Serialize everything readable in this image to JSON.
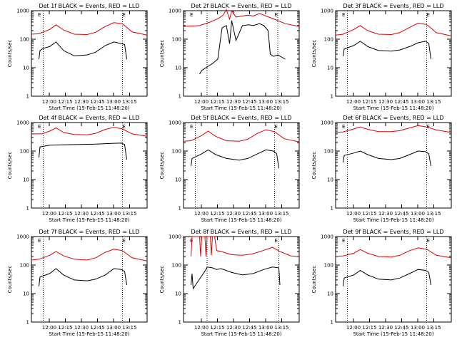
{
  "chart_data": [
    {
      "type": "line",
      "title": "Det 1f BLACK = Events, RED = LLD",
      "xlabel": "Start Time (15-Feb-15 11:48:20)",
      "ylabel": "Counts/sec",
      "yscale": "log",
      "ylim": [
        1,
        1000
      ],
      "xlim_minutes": [
        -5,
        103
      ],
      "x_tick_labels": [
        "12:00",
        "12:15",
        "12:30",
        "12:45",
        "13:00",
        "13:15"
      ],
      "x_tick_minutes": [
        11.67,
        26.67,
        41.67,
        56.67,
        71.67,
        86.67
      ],
      "y_tick_labels": [
        "1",
        "10",
        "100",
        "1000"
      ],
      "y_tick_values": [
        1,
        10,
        100,
        1000
      ],
      "vertical_lines_minutes": [
        6,
        80
      ],
      "markers": [
        {
          "label": "E",
          "x_minute": 1
        },
        {
          "label": "E",
          "x_minute": 80
        }
      ],
      "series": [
        {
          "color": "#e00000",
          "x": [
            -5,
            2,
            12,
            18,
            25,
            35,
            47,
            55,
            64,
            72,
            80,
            89,
            103
          ],
          "y": [
            150,
            155,
            220,
            320,
            210,
            150,
            145,
            175,
            280,
            380,
            350,
            180,
            140
          ]
        },
        {
          "color": "#000000",
          "x": [
            2,
            3,
            6,
            12,
            18,
            25,
            35,
            47,
            55,
            64,
            72,
            79,
            82,
            84
          ],
          "y": [
            20,
            40,
            48,
            55,
            80,
            40,
            26,
            28,
            35,
            60,
            80,
            70,
            65,
            20
          ]
        }
      ]
    },
    {
      "type": "line",
      "title": "Det 2f BLACK = Events, RED = LLD",
      "xlabel": "Start Time (15-Feb-15 11:48:20)",
      "ylabel": "Counts/sec",
      "yscale": "log",
      "ylim": [
        1,
        1000
      ],
      "xlim_minutes": [
        -5,
        103
      ],
      "x_tick_labels": [
        "12:00",
        "12:15",
        "12:30",
        "12:45",
        "13:00",
        "13:15"
      ],
      "x_tick_minutes": [
        11.67,
        26.67,
        41.67,
        56.67,
        71.67,
        86.67
      ],
      "y_tick_labels": [
        "1",
        "10",
        "100",
        "1000"
      ],
      "y_tick_values": [
        1,
        10,
        100,
        1000
      ],
      "vertical_lines_minutes": [
        17,
        83
      ],
      "markers": [
        {
          "label": "E",
          "x_minute": 1
        },
        {
          "label": "E",
          "x_minute": 80
        }
      ],
      "series": [
        {
          "color": "#e00000",
          "x": [
            -5,
            10,
            20,
            28,
            32,
            35,
            38,
            40,
            44,
            50,
            55,
            60,
            66,
            72,
            80,
            90,
            103
          ],
          "y": [
            280,
            300,
            400,
            550,
            700,
            1100,
            500,
            1000,
            600,
            650,
            700,
            650,
            800,
            650,
            500,
            350,
            280
          ]
        },
        {
          "color": "#000000",
          "x": [
            10,
            12,
            16,
            22,
            27,
            31,
            35,
            38,
            40,
            44,
            50,
            56,
            60,
            66,
            70,
            74,
            76,
            79,
            83,
            90
          ],
          "y": [
            6,
            8,
            10,
            14,
            20,
            250,
            300,
            70,
            450,
            90,
            300,
            320,
            300,
            350,
            300,
            200,
            30,
            25,
            28,
            20
          ]
        }
      ]
    },
    {
      "type": "line",
      "title": "Det 3f BLACK = Events, RED = LLD",
      "xlabel": "Start Time (15-Feb-15 11:48:20)",
      "ylabel": "Counts/sec",
      "yscale": "log",
      "ylim": [
        1,
        1000
      ],
      "xlim_minutes": [
        -5,
        103
      ],
      "x_tick_labels": [
        "12:00",
        "12:15",
        "12:30",
        "12:45",
        "13:00",
        "13:15"
      ],
      "x_tick_minutes": [
        11.67,
        26.67,
        41.67,
        56.67,
        71.67,
        86.67
      ],
      "y_tick_labels": [
        "1",
        "10",
        "100",
        "1000"
      ],
      "y_tick_values": [
        1,
        10,
        100,
        1000
      ],
      "vertical_lines_minutes": [
        6,
        80
      ],
      "markers": [
        {
          "label": "E",
          "x_minute": 1
        },
        {
          "label": "E",
          "x_minute": 80
        }
      ],
      "series": [
        {
          "color": "#e00000",
          "x": [
            -5,
            2,
            12,
            18,
            25,
            35,
            47,
            55,
            64,
            72,
            80,
            89,
            103
          ],
          "y": [
            140,
            150,
            220,
            300,
            200,
            150,
            145,
            170,
            260,
            360,
            330,
            170,
            130
          ]
        },
        {
          "color": "#000000",
          "x": [
            2,
            3,
            12,
            18,
            25,
            35,
            47,
            55,
            64,
            72,
            79,
            82,
            84
          ],
          "y": [
            25,
            45,
            60,
            85,
            55,
            40,
            38,
            42,
            55,
            75,
            85,
            70,
            20
          ]
        }
      ]
    },
    {
      "type": "line",
      "title": "Det 4f BLACK = Events, RED = LLD",
      "xlabel": "Start Time (15-Feb-15 11:48:20)",
      "ylabel": "Counts/sec",
      "yscale": "log",
      "ylim": [
        1,
        1000
      ],
      "xlim_minutes": [
        -5,
        103
      ],
      "x_tick_labels": [
        "12:00",
        "12:15",
        "12:30",
        "12:45",
        "13:00",
        "13:15"
      ],
      "x_tick_minutes": [
        11.67,
        26.67,
        41.67,
        56.67,
        71.67,
        86.67
      ],
      "y_tick_labels": [
        "1",
        "10",
        "100",
        "1000"
      ],
      "y_tick_values": [
        1,
        10,
        100,
        1000
      ],
      "vertical_lines_minutes": [
        6,
        80
      ],
      "markers": [
        {
          "label": "E",
          "x_minute": 1
        },
        {
          "label": "E",
          "x_minute": 80
        }
      ],
      "series": [
        {
          "color": "#e00000",
          "x": [
            -5,
            5,
            12,
            18,
            25,
            35,
            47,
            55,
            64,
            72,
            80,
            89,
            103
          ],
          "y": [
            400,
            400,
            500,
            650,
            450,
            380,
            370,
            420,
            580,
            680,
            600,
            400,
            330
          ]
        },
        {
          "color": "#000000",
          "x": [
            2,
            3,
            12,
            25,
            40,
            55,
            70,
            79,
            82,
            84
          ],
          "y": [
            60,
            140,
            160,
            165,
            170,
            175,
            185,
            190,
            170,
            50
          ]
        }
      ]
    },
    {
      "type": "line",
      "title": "Det 5f BLACK = Events, RED = LLD",
      "xlabel": "Start Time (15-Feb-15 11:48:20)",
      "ylabel": "Counts/sec",
      "yscale": "log",
      "ylim": [
        1,
        1000
      ],
      "xlim_minutes": [
        -5,
        103
      ],
      "x_tick_labels": [
        "12:00",
        "12:15",
        "12:30",
        "12:45",
        "13:00",
        "13:15"
      ],
      "x_tick_minutes": [
        11.67,
        26.67,
        41.67,
        56.67,
        71.67,
        86.67
      ],
      "y_tick_labels": [
        "1",
        "10",
        "100",
        "1000"
      ],
      "y_tick_values": [
        1,
        10,
        100,
        1000
      ],
      "vertical_lines_minutes": [
        6,
        80
      ],
      "markers": [
        {
          "label": "E",
          "x_minute": 1
        },
        {
          "label": "E",
          "x_minute": 80
        }
      ],
      "series": [
        {
          "color": "#e00000",
          "x": [
            -5,
            2,
            12,
            18,
            25,
            35,
            47,
            55,
            64,
            72,
            80,
            89,
            103
          ],
          "y": [
            220,
            230,
            350,
            500,
            330,
            230,
            220,
            260,
            420,
            560,
            480,
            270,
            210
          ]
        },
        {
          "color": "#000000",
          "x": [
            2,
            3,
            12,
            18,
            25,
            35,
            47,
            55,
            64,
            72,
            79,
            82,
            84
          ],
          "y": [
            30,
            55,
            80,
            110,
            75,
            55,
            48,
            55,
            80,
            110,
            100,
            80,
            25
          ]
        }
      ]
    },
    {
      "type": "line",
      "title": "Det 6f BLACK = Events, RED = LLD",
      "xlabel": "Start Time (15-Feb-15 11:48:20)",
      "ylabel": "Counts/sec",
      "yscale": "log",
      "ylim": [
        1,
        1000
      ],
      "xlim_minutes": [
        -5,
        103
      ],
      "x_tick_labels": [
        "12:00",
        "12:15",
        "12:30",
        "12:45",
        "13:00",
        "13:15"
      ],
      "x_tick_minutes": [
        11.67,
        26.67,
        41.67,
        56.67,
        71.67,
        86.67
      ],
      "y_tick_labels": [
        "1",
        "10",
        "100",
        "1000"
      ],
      "y_tick_values": [
        1,
        10,
        100,
        1000
      ],
      "vertical_lines_minutes": [
        6,
        80
      ],
      "markers": [
        {
          "label": "E",
          "x_minute": 1
        },
        {
          "label": "E",
          "x_minute": 80
        }
      ],
      "series": [
        {
          "color": "#e00000",
          "x": [
            -5,
            2,
            12,
            18,
            25,
            35,
            47,
            55,
            64,
            72,
            80,
            89,
            103
          ],
          "y": [
            450,
            470,
            600,
            700,
            580,
            480,
            480,
            520,
            650,
            780,
            700,
            550,
            450
          ]
        },
        {
          "color": "#000000",
          "x": [
            2,
            3,
            12,
            18,
            25,
            35,
            47,
            55,
            64,
            72,
            79,
            82,
            84
          ],
          "y": [
            40,
            70,
            85,
            100,
            75,
            55,
            50,
            55,
            75,
            100,
            95,
            80,
            30
          ]
        }
      ]
    },
    {
      "type": "line",
      "title": "Det 7f BLACK = Events, RED = LLD",
      "xlabel": "Start Time (15-Feb-15 11:48:20)",
      "ylabel": "Counts/sec",
      "yscale": "log",
      "ylim": [
        1,
        1000
      ],
      "xlim_minutes": [
        -5,
        103
      ],
      "x_tick_labels": [
        "12:00",
        "12:15",
        "12:30",
        "12:45",
        "13:00",
        "13:15"
      ],
      "x_tick_minutes": [
        11.67,
        26.67,
        41.67,
        56.67,
        71.67,
        86.67
      ],
      "y_tick_labels": [
        "1",
        "10",
        "100",
        "1000"
      ],
      "y_tick_values": [
        1,
        10,
        100,
        1000
      ],
      "vertical_lines_minutes": [
        6,
        80
      ],
      "markers": [
        {
          "label": "E",
          "x_minute": 1
        },
        {
          "label": "E",
          "x_minute": 80
        }
      ],
      "series": [
        {
          "color": "#e00000",
          "x": [
            -5,
            2,
            12,
            18,
            25,
            35,
            47,
            55,
            64,
            72,
            80,
            89,
            103
          ],
          "y": [
            150,
            160,
            220,
            300,
            210,
            160,
            150,
            180,
            280,
            360,
            320,
            180,
            140
          ]
        },
        {
          "color": "#000000",
          "x": [
            2,
            3,
            12,
            18,
            25,
            35,
            47,
            55,
            64,
            72,
            79,
            82,
            84
          ],
          "y": [
            18,
            38,
            50,
            75,
            45,
            30,
            28,
            32,
            45,
            75,
            70,
            60,
            20
          ]
        }
      ]
    },
    {
      "type": "line",
      "title": "Det 8f BLACK = Events, RED = LLD",
      "xlabel": "Start Time (15-Feb-15 11:48:20)",
      "ylabel": "Counts/sec",
      "yscale": "log",
      "ylim": [
        1,
        1000
      ],
      "xlim_minutes": [
        -5,
        103
      ],
      "x_tick_labels": [
        "12:00",
        "12:15",
        "12:30",
        "12:45",
        "13:00",
        "13:15"
      ],
      "x_tick_minutes": [
        11.67,
        26.67,
        41.67,
        56.67,
        71.67,
        86.67
      ],
      "y_tick_labels": [
        "1",
        "10",
        "100",
        "1000"
      ],
      "y_tick_values": [
        1,
        10,
        100,
        1000
      ],
      "vertical_lines_minutes": [
        17,
        84
      ],
      "markers": [
        {
          "label": "E",
          "x_minute": 1
        },
        {
          "label": "E",
          "x_minute": 80
        }
      ],
      "series": [
        {
          "color": "#e00000",
          "x": [
            2,
            3,
            10,
            11,
            12,
            15,
            16,
            17,
            20,
            21,
            22,
            24,
            26,
            30,
            40,
            50,
            60,
            70,
            78,
            85,
            95,
            103
          ],
          "y": [
            200,
            1000,
            1000,
            200,
            1000,
            1000,
            200,
            1000,
            1000,
            220,
            1000,
            1000,
            320,
            300,
            230,
            220,
            250,
            330,
            420,
            300,
            210,
            200
          ]
        },
        {
          "color": "#000000",
          "x": [
            2,
            3,
            4,
            16,
            17,
            22,
            26,
            30,
            40,
            50,
            60,
            70,
            78,
            84,
            85
          ],
          "y": [
            20,
            50,
            15,
            70,
            85,
            80,
            70,
            75,
            55,
            45,
            50,
            70,
            85,
            80,
            20
          ]
        }
      ]
    },
    {
      "type": "line",
      "title": "Det 9f BLACK = Events, RED = LLD",
      "xlabel": "Start Time (15-Feb-15 11:48:20)",
      "ylabel": "Counts/sec",
      "yscale": "log",
      "ylim": [
        1,
        1000
      ],
      "xlim_minutes": [
        -5,
        103
      ],
      "x_tick_labels": [
        "12:00",
        "12:15",
        "12:30",
        "12:45",
        "13:00",
        "13:15"
      ],
      "x_tick_minutes": [
        11.67,
        26.67,
        41.67,
        56.67,
        71.67,
        86.67
      ],
      "y_tick_labels": [
        "1",
        "10",
        "100",
        "1000"
      ],
      "y_tick_values": [
        1,
        10,
        100,
        1000
      ],
      "vertical_lines_minutes": [
        6,
        80
      ],
      "markers": [
        {
          "label": "E",
          "x_minute": 1
        },
        {
          "label": "E",
          "x_minute": 80
        }
      ],
      "series": [
        {
          "color": "#e00000",
          "x": [
            -5,
            2,
            12,
            18,
            25,
            35,
            47,
            55,
            64,
            72,
            80,
            89,
            103
          ],
          "y": [
            200,
            210,
            260,
            350,
            260,
            200,
            190,
            220,
            320,
            400,
            360,
            220,
            180
          ]
        },
        {
          "color": "#000000",
          "x": [
            2,
            3,
            12,
            18,
            25,
            35,
            47,
            55,
            64,
            72,
            79,
            82,
            84
          ],
          "y": [
            18,
            35,
            45,
            65,
            45,
            32,
            30,
            35,
            50,
            70,
            65,
            55,
            20
          ]
        }
      ]
    }
  ]
}
